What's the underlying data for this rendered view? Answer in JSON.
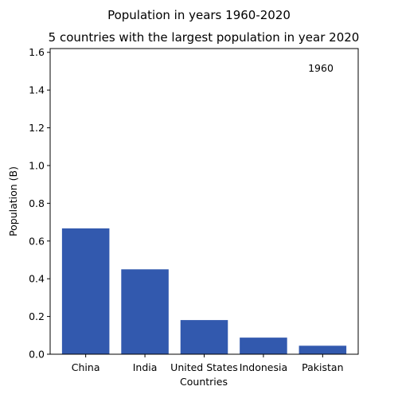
{
  "chart_data": {
    "type": "bar",
    "suptitle": "Population in years 1960-2020",
    "title": "5 countries with the largest population in year 2020",
    "xlabel": "Countries",
    "ylabel": "Population (B)",
    "annotation": "1960",
    "categories": [
      "China",
      "India",
      "United States",
      "Indonesia",
      "Pakistan"
    ],
    "values": [
      0.667,
      0.45,
      0.181,
      0.088,
      0.045
    ],
    "ylim": [
      0,
      1.62
    ],
    "yticks": [
      "0.0",
      "0.2",
      "0.4",
      "0.6",
      "0.8",
      "1.0",
      "1.2",
      "1.4",
      "1.6"
    ],
    "bar_color": "#3259ae",
    "grid": false,
    "legend": "none"
  }
}
